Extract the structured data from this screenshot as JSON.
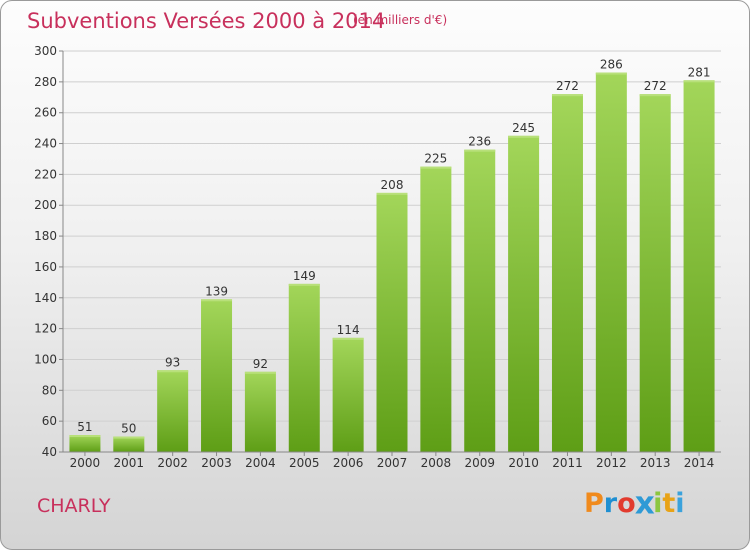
{
  "title": "Subventions Versées 2000 à 2014",
  "subtitle": "(en milliers d'€)",
  "commune": "CHARLY",
  "logo": {
    "text": "Proxiti",
    "colors": [
      "#f08a1c",
      "#1e8fd2",
      "#e23b2e",
      "#2e9ad6",
      "#8cc63f",
      "#e8a317",
      "#3aa2dc"
    ]
  },
  "chart_data": {
    "type": "bar",
    "categories": [
      "2000",
      "2001",
      "2002",
      "2003",
      "2004",
      "2005",
      "2006",
      "2007",
      "2008",
      "2009",
      "2010",
      "2011",
      "2012",
      "2013",
      "2014"
    ],
    "values": [
      51,
      50,
      93,
      139,
      92,
      149,
      114,
      208,
      225,
      236,
      245,
      272,
      286,
      272,
      281
    ],
    "ylim": [
      40,
      300
    ],
    "yticks": [
      40,
      60,
      80,
      100,
      120,
      140,
      160,
      180,
      200,
      220,
      240,
      260,
      280,
      300
    ],
    "grid": true,
    "bar_color": "#7cc22e",
    "bar_color_dark": "#5a9a1a",
    "label_color": "#333333",
    "title_color": "#c8305c"
  }
}
